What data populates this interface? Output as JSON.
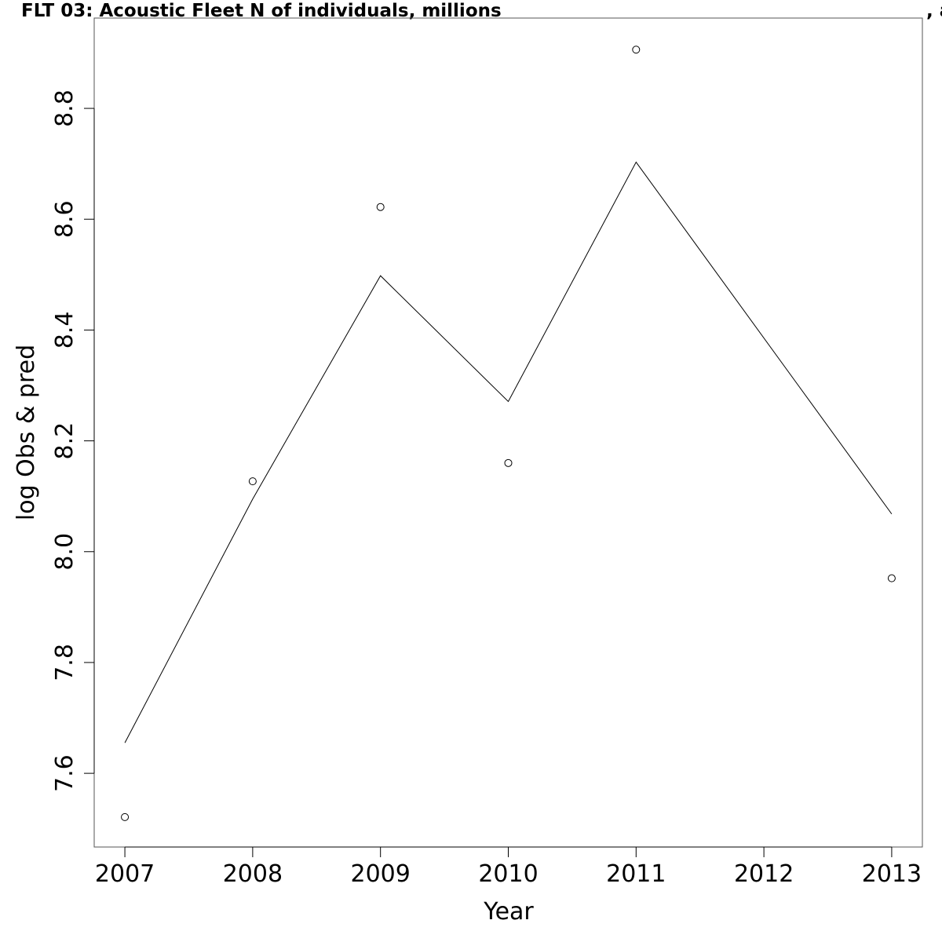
{
  "chart_data": {
    "type": "line",
    "title": "FLT 03: Acoustic Fleet   N of individuals, millions",
    "title_suffix": ", a",
    "xlabel": "Year",
    "ylabel": "log Obs & pred",
    "x_ticks": [
      "2007",
      "2008",
      "2009",
      "2010",
      "2011",
      "2012",
      "2013"
    ],
    "y_ticks": [
      "7.6",
      "7.8",
      "8.0",
      "8.2",
      "8.4",
      "8.6",
      "8.8"
    ],
    "xlim": [
      2006.76,
      2013.24
    ],
    "ylim": [
      7.467,
      8.963
    ],
    "grid": false,
    "series": [
      {
        "style": "points",
        "x": [
          2007,
          2008,
          2009,
          2010,
          2011,
          2013
        ],
        "y": [
          7.521,
          8.127,
          8.622,
          8.16,
          8.906,
          7.952
        ]
      },
      {
        "style": "line",
        "x": [
          2007,
          2008,
          2009,
          2010,
          2011,
          2013
        ],
        "y": [
          7.655,
          8.095,
          8.498,
          8.271,
          8.703,
          8.068
        ]
      }
    ]
  }
}
